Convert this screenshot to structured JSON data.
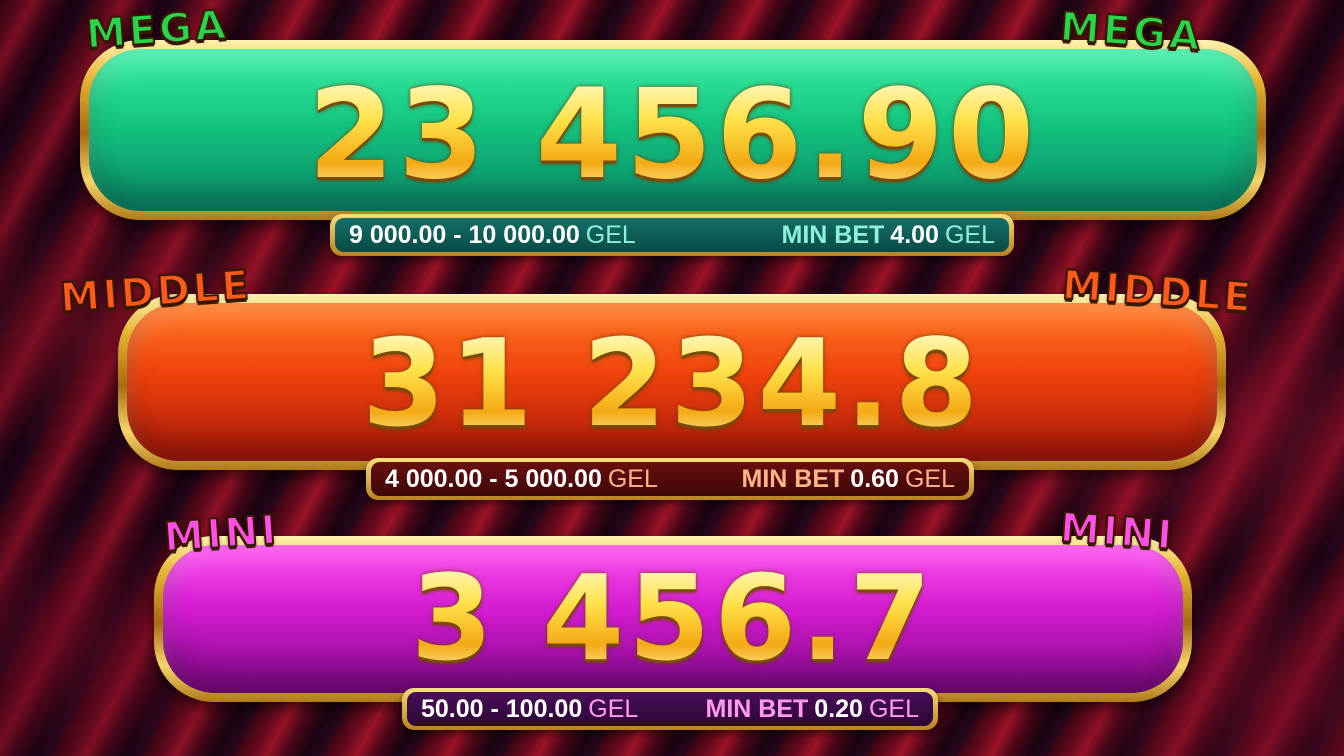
{
  "jackpots": [
    {
      "label": "MEGA",
      "amount": "23 456.90",
      "range": "9 000.00 - 10 000.00",
      "currency": "GEL",
      "min_bet_label": "MIN BET",
      "min_bet_value": "4.00",
      "colors": {
        "bar_top": "#1fe08f",
        "bar_bottom": "#0a8a6a",
        "info_bg": "#0d5a55",
        "accent": "#8ff0d8",
        "label": "#27d44a"
      }
    },
    {
      "label": "MIDDLE",
      "amount": "31 234.8",
      "range": "4 000.00 - 5 000.00",
      "currency": "GEL",
      "min_bet_label": "MIN BET",
      "min_bet_value": "0.60",
      "colors": {
        "bar_top": "#ff6a10",
        "bar_bottom": "#b31e07",
        "info_bg": "#5a0c0c",
        "accent": "#ffb48a",
        "label": "#ff5a1a"
      }
    },
    {
      "label": "MINI",
      "amount": "3 456.7",
      "range": "50.00 - 100.00",
      "currency": "GEL",
      "min_bet_label": "MIN BET",
      "min_bet_value": "0.20",
      "colors": {
        "bar_top": "#ff2ee8",
        "bar_bottom": "#8a0a8c",
        "info_bg": "#3a0a44",
        "accent": "#ff9af0",
        "label": "#ff4fe6"
      }
    }
  ]
}
